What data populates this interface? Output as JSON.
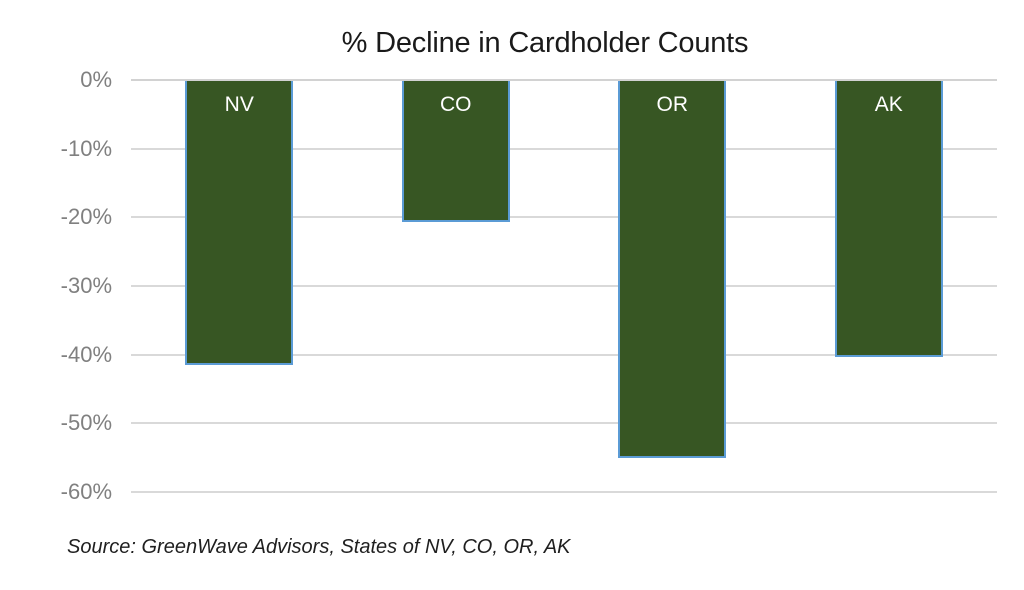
{
  "chart_data": {
    "type": "bar",
    "title": "% Decline in Cardholder Counts",
    "categories": [
      "NV",
      "CO",
      "OR",
      "AK"
    ],
    "values": [
      -41.5,
      -20.7,
      -55.0,
      -40.4
    ],
    "value_unit": "%",
    "xlabel": "",
    "ylabel": "",
    "ylim": [
      -60,
      0
    ],
    "yticks": [
      0,
      -10,
      -20,
      -30,
      -40,
      -50,
      -60
    ],
    "ytick_labels": [
      "0%",
      "-10%",
      "-20%",
      "-30%",
      "-40%",
      "-50%",
      "-60%"
    ],
    "grid": true,
    "legend": "none",
    "bar_label_position": "inside-top",
    "colors": {
      "bar_fill": "#375623",
      "bar_border": "#5b9bd5",
      "gridline": "#d9d9d9",
      "zero_line": "#d2d2d2",
      "tick_text": "#808080",
      "title_text": "#1a1a1a",
      "bar_label_text": "#ffffff",
      "source_text": "#1f1f1f",
      "background": "#ffffff"
    }
  },
  "source_note": "Source: GreenWave Advisors, States of NV, CO, OR, AK"
}
